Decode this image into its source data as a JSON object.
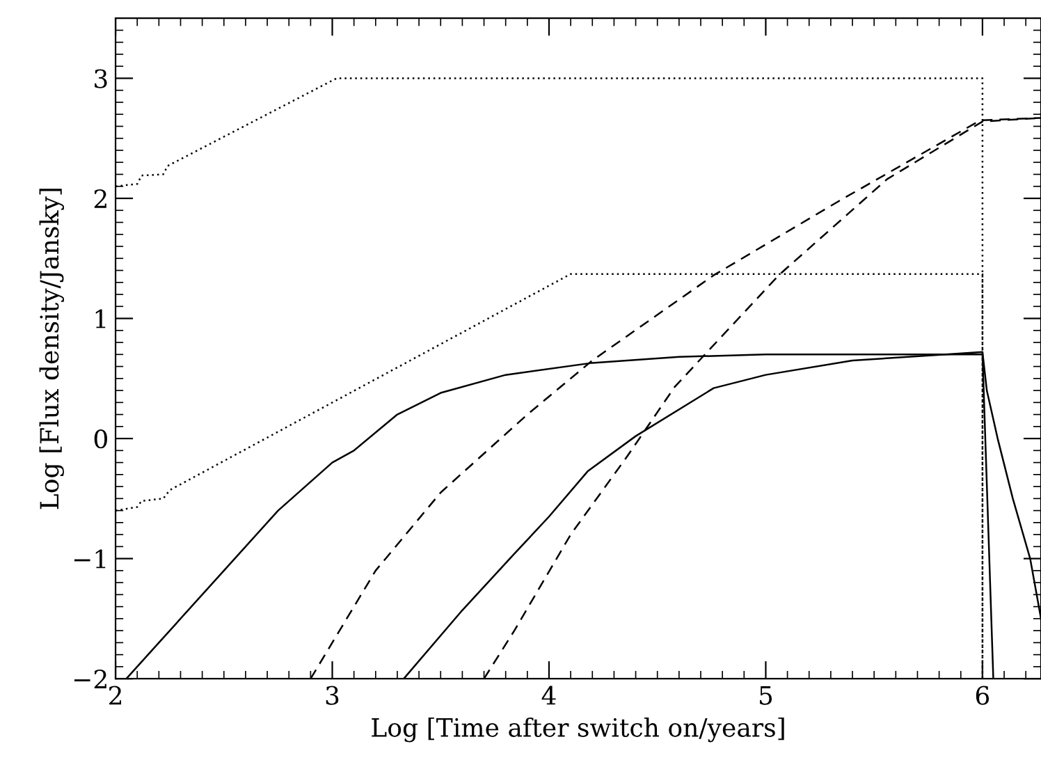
{
  "chart_data": {
    "type": "line",
    "xlabel": "Log [Time after switch on/years]",
    "ylabel": "Log [Flux density/Jansky]",
    "xlim": [
      2,
      6.27
    ],
    "ylim": [
      -2,
      3.5
    ],
    "xticks": [
      2,
      3,
      4,
      5,
      6
    ],
    "yticks": [
      -2,
      -1,
      0,
      1,
      2,
      3
    ],
    "series": [
      {
        "color": "#000000",
        "line_style": "dotted",
        "x": [
          2,
          2.1,
          2.12,
          2.22,
          2.24,
          3.02,
          6.0,
          6.0
        ],
        "values": [
          2.1,
          2.12,
          2.19,
          2.2,
          2.27,
          3.0,
          3.0,
          -2.0
        ]
      },
      {
        "color": "#000000",
        "line_style": "dotted",
        "x": [
          2,
          2.1,
          2.12,
          2.22,
          2.25,
          4.1,
          6.0,
          6.0
        ],
        "values": [
          -0.6,
          -0.57,
          -0.52,
          -0.5,
          -0.43,
          1.37,
          1.37,
          -2.0
        ]
      },
      {
        "color": "#000000",
        "line_style": "solid",
        "x": [
          2.05,
          2.2,
          2.5,
          2.75,
          3.0,
          3.1,
          3.3,
          3.5,
          3.8,
          4.2,
          4.6,
          5.0,
          6.0,
          6.05
        ],
        "values": [
          -2.0,
          -1.7,
          -1.1,
          -0.6,
          -0.2,
          -0.1,
          0.2,
          0.38,
          0.53,
          0.63,
          0.68,
          0.7,
          0.7,
          -2.0
        ]
      },
      {
        "color": "#000000",
        "line_style": "solid",
        "x": [
          3.33,
          3.6,
          3.84,
          4.0,
          4.18,
          4.4,
          4.76,
          5.0,
          5.4,
          6.0,
          6.02,
          6.07,
          6.14,
          6.22,
          6.27
        ],
        "values": [
          -2.0,
          -1.43,
          -0.96,
          -0.65,
          -0.27,
          0.02,
          0.42,
          0.53,
          0.65,
          0.72,
          0.4,
          0.0,
          -0.5,
          -1.0,
          -1.5
        ]
      },
      {
        "color": "#000000",
        "line_style": "dashed",
        "x": [
          2.9,
          3.2,
          3.5,
          3.9,
          4.2,
          4.76,
          5.34,
          5.99,
          6.27
        ],
        "values": [
          -2.0,
          -1.1,
          -0.45,
          0.2,
          0.65,
          1.36,
          1.98,
          2.65,
          2.67
        ]
      },
      {
        "color": "#000000",
        "line_style": "dashed",
        "x": [
          3.7,
          3.84,
          4.1,
          4.36,
          4.58,
          5.06,
          5.56,
          6.0,
          6.27
        ],
        "values": [
          -2.0,
          -1.6,
          -0.8,
          -0.15,
          0.43,
          1.36,
          2.16,
          2.64,
          2.67
        ]
      }
    ]
  }
}
